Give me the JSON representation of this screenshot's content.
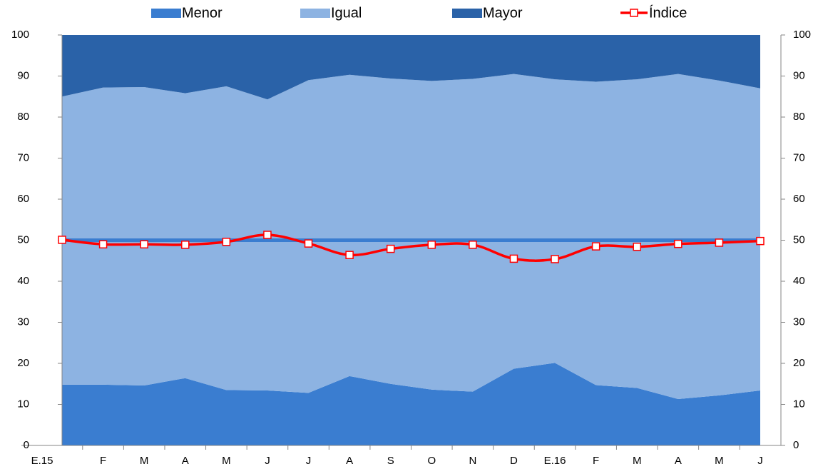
{
  "chart_data": {
    "type": "stacked-area-line",
    "categories": [
      "E.15",
      "F",
      "M",
      "A",
      "M",
      "J",
      "J",
      "A",
      "S",
      "O",
      "N",
      "D",
      "E.16",
      "F",
      "M",
      "A",
      "M",
      "J"
    ],
    "series": [
      {
        "name": "Menor",
        "color": "#3a7dd0",
        "type": "area",
        "values": [
          14.8,
          14.8,
          14.6,
          16.4,
          13.5,
          13.4,
          12.8,
          16.9,
          15.0,
          13.6,
          13.1,
          18.7,
          20.1,
          14.7,
          14.0,
          11.3,
          12.2,
          13.4
        ]
      },
      {
        "name": "Igual",
        "color": "#8db3e2",
        "type": "area",
        "values": [
          70.2,
          72.4,
          72.7,
          69.4,
          74.0,
          70.9,
          76.2,
          73.4,
          74.4,
          75.2,
          76.2,
          71.8,
          69.1,
          73.9,
          75.2,
          79.2,
          76.7,
          73.6
        ]
      },
      {
        "name": "Mayor",
        "color": "#2a62a8",
        "type": "area",
        "values": [
          15.0,
          12.8,
          12.7,
          14.2,
          12.5,
          15.7,
          11.0,
          9.7,
          10.6,
          11.2,
          10.7,
          9.5,
          10.8,
          11.4,
          10.8,
          9.5,
          11.1,
          13.0
        ]
      },
      {
        "name": "Índice",
        "color": "#ff0000",
        "type": "line",
        "values": [
          50.1,
          49.0,
          49.0,
          48.9,
          49.6,
          51.3,
          49.2,
          46.4,
          47.9,
          48.9,
          48.9,
          45.5,
          45.4,
          48.5,
          48.4,
          49.1,
          49.4,
          49.8
        ]
      }
    ],
    "reference_line": 50,
    "ylim": [
      0,
      100
    ],
    "yticks": [
      0,
      10,
      20,
      30,
      40,
      50,
      60,
      70,
      80,
      90,
      100
    ],
    "y2lim": [
      0,
      100
    ],
    "y2ticks": [
      0,
      10,
      20,
      30,
      40,
      50,
      60,
      70,
      80,
      90,
      100
    ]
  }
}
